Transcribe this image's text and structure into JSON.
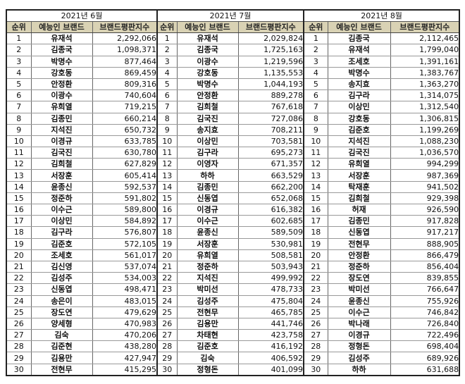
{
  "headers": {
    "rank": "순위",
    "brand": "예능인 브랜드",
    "index": "브랜드평판지수"
  },
  "months": [
    {
      "title": "2021년 6월",
      "rows": [
        {
          "rank": "1",
          "name": "유재석",
          "value": "2,292,066"
        },
        {
          "rank": "2",
          "name": "김종국",
          "value": "1,098,371"
        },
        {
          "rank": "3",
          "name": "박명수",
          "value": "877,464"
        },
        {
          "rank": "4",
          "name": "강호동",
          "value": "869,459"
        },
        {
          "rank": "5",
          "name": "안정환",
          "value": "809,316"
        },
        {
          "rank": "6",
          "name": "이광수",
          "value": "740,604"
        },
        {
          "rank": "7",
          "name": "유희열",
          "value": "719,215"
        },
        {
          "rank": "8",
          "name": "김종민",
          "value": "660,214"
        },
        {
          "rank": "9",
          "name": "지석진",
          "value": "650,732"
        },
        {
          "rank": "10",
          "name": "이경규",
          "value": "633,785"
        },
        {
          "rank": "11",
          "name": "김국진",
          "value": "630,780"
        },
        {
          "rank": "12",
          "name": "김희철",
          "value": "627,829"
        },
        {
          "rank": "13",
          "name": "서장훈",
          "value": "605,414"
        },
        {
          "rank": "14",
          "name": "윤종신",
          "value": "592,537"
        },
        {
          "rank": "15",
          "name": "정준하",
          "value": "591,802"
        },
        {
          "rank": "16",
          "name": "이수근",
          "value": "589,800"
        },
        {
          "rank": "17",
          "name": "이상민",
          "value": "584,892"
        },
        {
          "rank": "18",
          "name": "김구라",
          "value": "576,807"
        },
        {
          "rank": "19",
          "name": "김준호",
          "value": "572,105"
        },
        {
          "rank": "20",
          "name": "조세호",
          "value": "561,017"
        },
        {
          "rank": "21",
          "name": "김신영",
          "value": "537,074"
        },
        {
          "rank": "22",
          "name": "김성주",
          "value": "534,003"
        },
        {
          "rank": "23",
          "name": "신동엽",
          "value": "498,471"
        },
        {
          "rank": "24",
          "name": "송은이",
          "value": "483,015"
        },
        {
          "rank": "25",
          "name": "장도연",
          "value": "479,629"
        },
        {
          "rank": "26",
          "name": "양세형",
          "value": "470,983"
        },
        {
          "rank": "27",
          "name": "김숙",
          "value": "470,206"
        },
        {
          "rank": "28",
          "name": "김준현",
          "value": "438,280"
        },
        {
          "rank": "29",
          "name": "김용만",
          "value": "427,947"
        },
        {
          "rank": "30",
          "name": "전현무",
          "value": "415,295"
        }
      ]
    },
    {
      "title": "2021년 7월",
      "rows": [
        {
          "rank": "1",
          "name": "유재석",
          "value": "2,029,824"
        },
        {
          "rank": "2",
          "name": "김종국",
          "value": "1,725,163"
        },
        {
          "rank": "3",
          "name": "이광수",
          "value": "1,219,596"
        },
        {
          "rank": "4",
          "name": "강호동",
          "value": "1,135,553"
        },
        {
          "rank": "5",
          "name": "박명수",
          "value": "1,044,193"
        },
        {
          "rank": "6",
          "name": "안정환",
          "value": "889,278"
        },
        {
          "rank": "7",
          "name": "김희철",
          "value": "767,618"
        },
        {
          "rank": "8",
          "name": "김국진",
          "value": "727,086"
        },
        {
          "rank": "9",
          "name": "송지효",
          "value": "708,211"
        },
        {
          "rank": "10",
          "name": "이상민",
          "value": "703,581"
        },
        {
          "rank": "11",
          "name": "김구라",
          "value": "695,273"
        },
        {
          "rank": "12",
          "name": "이영자",
          "value": "671,357"
        },
        {
          "rank": "13",
          "name": "하하",
          "value": "663,529"
        },
        {
          "rank": "14",
          "name": "김종민",
          "value": "662,200"
        },
        {
          "rank": "15",
          "name": "신동엽",
          "value": "652,068"
        },
        {
          "rank": "16",
          "name": "이경규",
          "value": "616,382"
        },
        {
          "rank": "17",
          "name": "이수근",
          "value": "602,685"
        },
        {
          "rank": "18",
          "name": "윤종신",
          "value": "589,509"
        },
        {
          "rank": "19",
          "name": "서장훈",
          "value": "530,981"
        },
        {
          "rank": "20",
          "name": "유희열",
          "value": "508,581"
        },
        {
          "rank": "21",
          "name": "정준하",
          "value": "503,943"
        },
        {
          "rank": "22",
          "name": "지석진",
          "value": "499,992"
        },
        {
          "rank": "23",
          "name": "박미선",
          "value": "478,733"
        },
        {
          "rank": "24",
          "name": "김성주",
          "value": "475,804"
        },
        {
          "rank": "25",
          "name": "전현무",
          "value": "465,785"
        },
        {
          "rank": "26",
          "name": "김용만",
          "value": "441,746"
        },
        {
          "rank": "27",
          "name": "차태현",
          "value": "423,758"
        },
        {
          "rank": "28",
          "name": "김준호",
          "value": "416,192"
        },
        {
          "rank": "29",
          "name": "김숙",
          "value": "406,592"
        },
        {
          "rank": "30",
          "name": "정형돈",
          "value": "401,099"
        }
      ]
    },
    {
      "title": "2021년 8월",
      "rows": [
        {
          "rank": "1",
          "name": "김종국",
          "value": "2,112,465"
        },
        {
          "rank": "2",
          "name": "유재석",
          "value": "1,799,040"
        },
        {
          "rank": "3",
          "name": "조세호",
          "value": "1,391,161"
        },
        {
          "rank": "4",
          "name": "박명수",
          "value": "1,383,767"
        },
        {
          "rank": "5",
          "name": "송지효",
          "value": "1,363,270"
        },
        {
          "rank": "6",
          "name": "김구라",
          "value": "1,314,075"
        },
        {
          "rank": "7",
          "name": "이상민",
          "value": "1,312,540"
        },
        {
          "rank": "8",
          "name": "강호동",
          "value": "1,306,815"
        },
        {
          "rank": "9",
          "name": "김준호",
          "value": "1,199,269"
        },
        {
          "rank": "10",
          "name": "지석진",
          "value": "1,088,230"
        },
        {
          "rank": "11",
          "name": "김국진",
          "value": "1,036,570"
        },
        {
          "rank": "12",
          "name": "유희열",
          "value": "994,299"
        },
        {
          "rank": "13",
          "name": "서장훈",
          "value": "987,369"
        },
        {
          "rank": "14",
          "name": "탁재훈",
          "value": "941,502"
        },
        {
          "rank": "15",
          "name": "김희철",
          "value": "929,398"
        },
        {
          "rank": "16",
          "name": "허재",
          "value": "926,590"
        },
        {
          "rank": "17",
          "name": "김종민",
          "value": "917,828"
        },
        {
          "rank": "18",
          "name": "신동엽",
          "value": "917,217"
        },
        {
          "rank": "19",
          "name": "전현무",
          "value": "888,905"
        },
        {
          "rank": "20",
          "name": "안정환",
          "value": "866,479"
        },
        {
          "rank": "21",
          "name": "정준하",
          "value": "856,404"
        },
        {
          "rank": "22",
          "name": "장도연",
          "value": "839,855"
        },
        {
          "rank": "23",
          "name": "박미선",
          "value": "766,647"
        },
        {
          "rank": "24",
          "name": "윤종신",
          "value": "755,926"
        },
        {
          "rank": "25",
          "name": "이수근",
          "value": "746,842"
        },
        {
          "rank": "26",
          "name": "박나래",
          "value": "726,840"
        },
        {
          "rank": "27",
          "name": "이경규",
          "value": "722,496"
        },
        {
          "rank": "28",
          "name": "정형돈",
          "value": "698,404"
        },
        {
          "rank": "29",
          "name": "김성주",
          "value": "689,926"
        },
        {
          "rank": "30",
          "name": "하하",
          "value": "631,688"
        }
      ]
    }
  ]
}
